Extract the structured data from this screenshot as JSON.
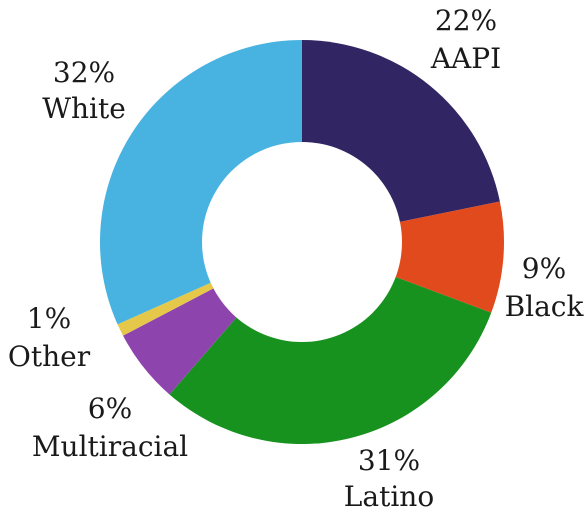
{
  "chart_data": {
    "type": "pie",
    "variant": "donut",
    "title": "",
    "categories": [
      "AAPI",
      "Black",
      "Latino",
      "Multiracial",
      "Other",
      "White"
    ],
    "values": [
      22,
      9,
      31,
      6,
      1,
      32
    ],
    "value_labels": [
      "22%",
      "9%",
      "31%",
      "6%",
      "1%",
      "32%"
    ],
    "colors": [
      "#312663",
      "#e14a1c",
      "#17921f",
      "#8e44ad",
      "#e5c84a",
      "#48b3e0"
    ],
    "start_angle": "top",
    "direction": "clockwise",
    "legend": "none"
  }
}
